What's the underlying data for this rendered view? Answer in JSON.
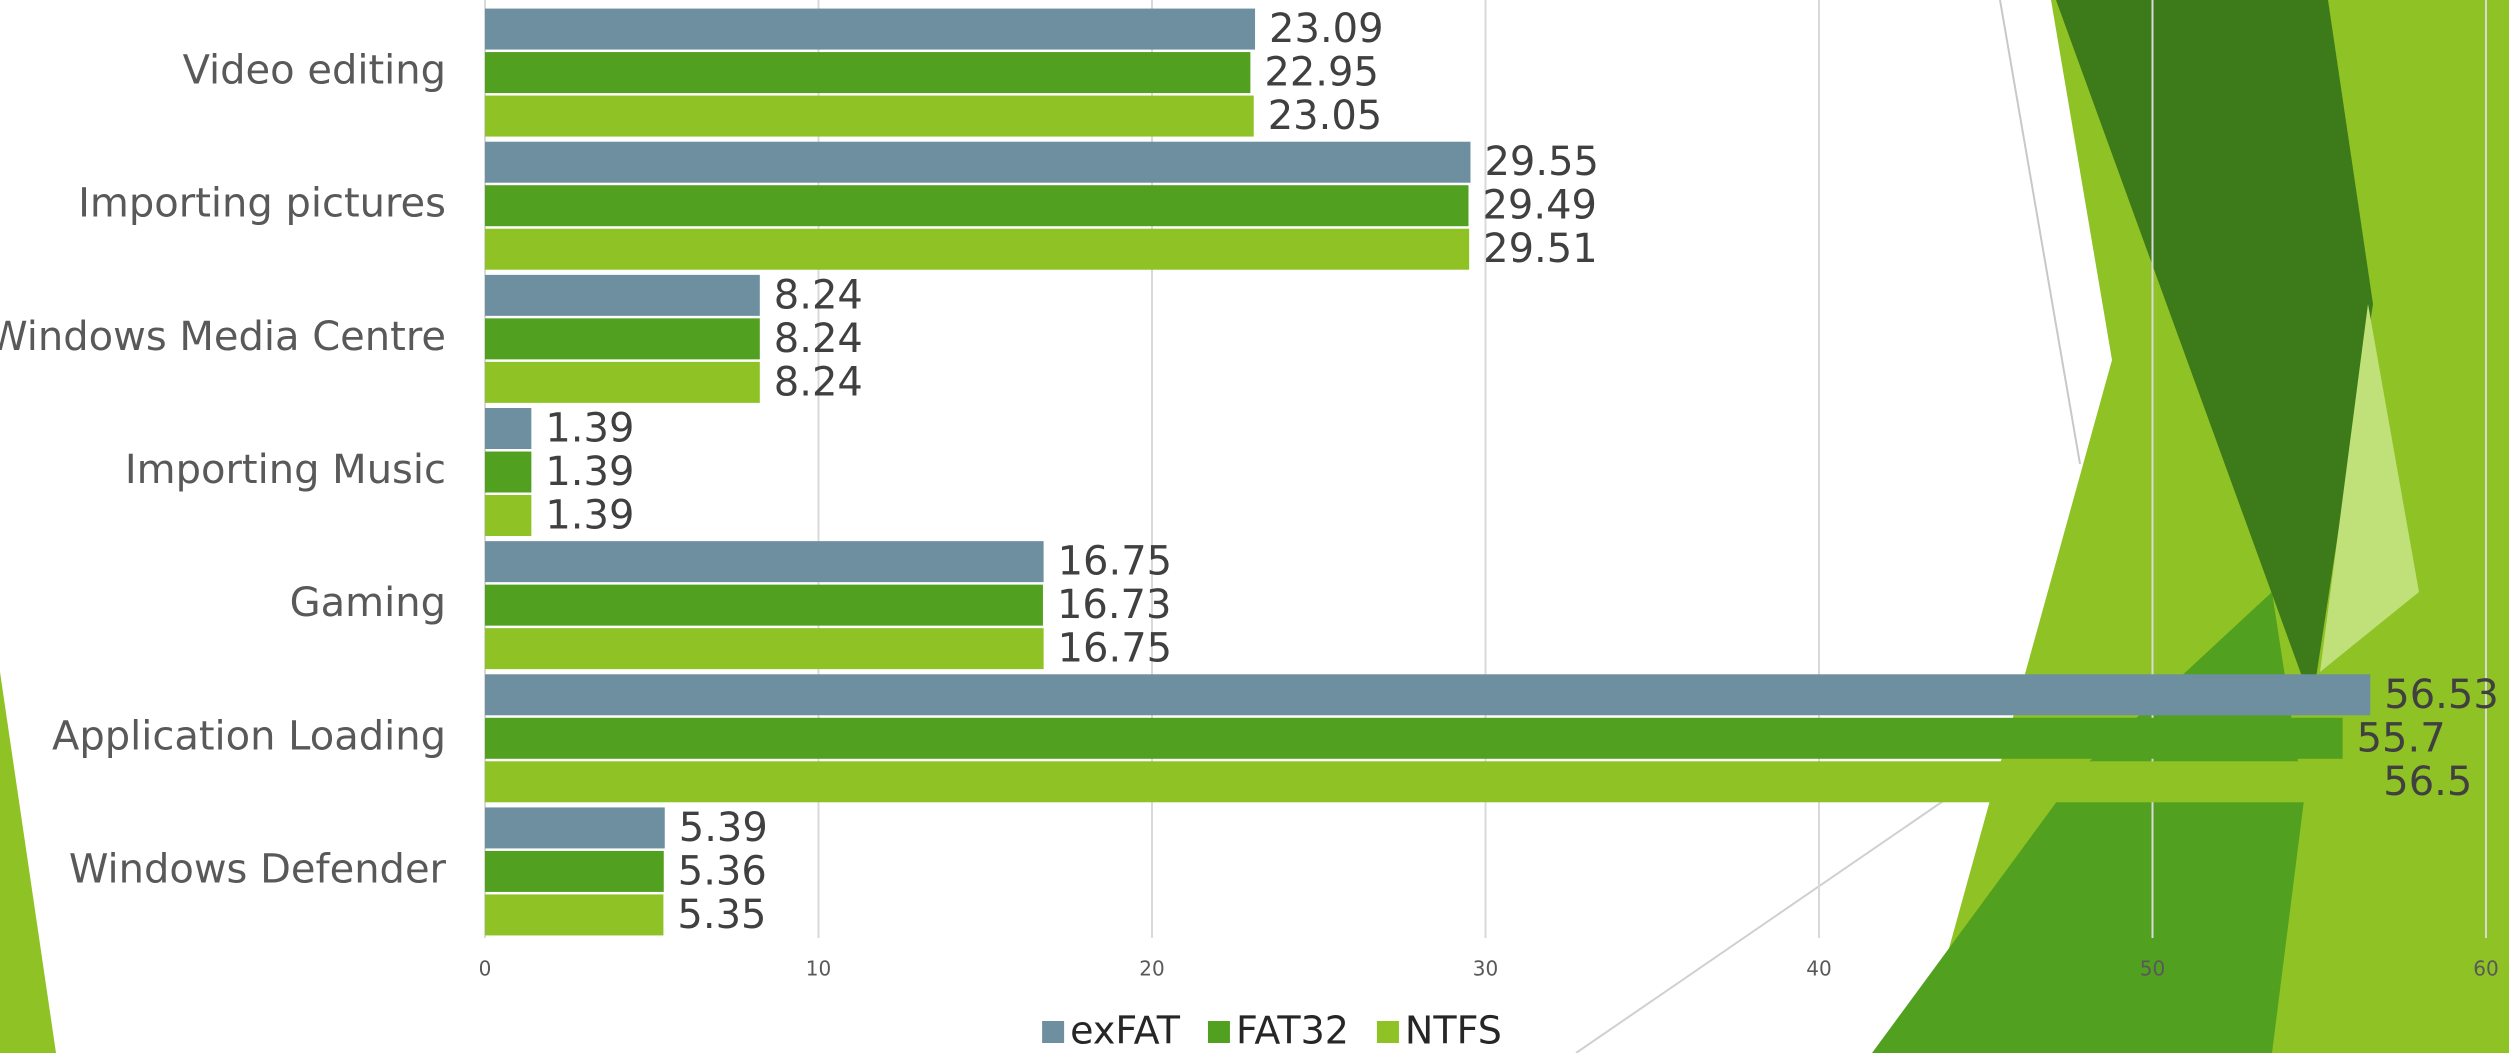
{
  "chart_data": {
    "type": "hbar",
    "categories": [
      "Video editing",
      "Importing pictures",
      "Windows Media Centre",
      "Importing Music",
      "Gaming",
      "Application Loading",
      "Windows Defender"
    ],
    "series": [
      {
        "name": "exFAT",
        "color": "#6e8fa0",
        "values": [
          23.09,
          29.55,
          8.24,
          1.39,
          16.75,
          56.53,
          5.39
        ]
      },
      {
        "name": "FAT32",
        "color": "#52a020",
        "values": [
          22.95,
          29.49,
          8.24,
          1.39,
          16.73,
          55.7,
          5.36
        ]
      },
      {
        "name": "NTFS",
        "color": "#8fc224",
        "values": [
          23.05,
          29.51,
          8.24,
          1.39,
          16.75,
          56.5,
          5.35
        ]
      }
    ],
    "xlim": [
      0,
      60
    ],
    "xticks": [
      0,
      10,
      20,
      30,
      40,
      50,
      60
    ],
    "grid": true,
    "legend": "bottom"
  }
}
